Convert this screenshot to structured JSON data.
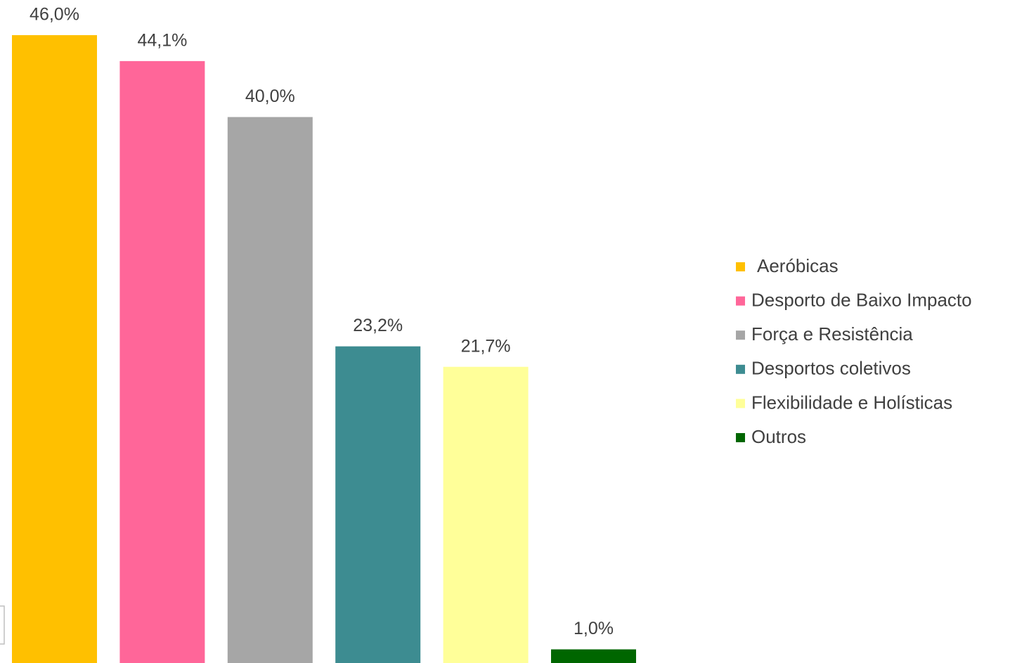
{
  "chart_data": {
    "type": "bar",
    "series": [
      {
        "name": "Aeróbicas",
        "color": "#FFC000",
        "values": [
          46.0
        ],
        "value_labels": [
          "46,0%"
        ]
      },
      {
        "name": "Desporto de Baixo Impacto",
        "color": "#FF6699",
        "values": [
          44.1
        ],
        "value_labels": [
          "44,1%"
        ]
      },
      {
        "name": "Força e Resistência",
        "color": "#A6A6A6",
        "values": [
          40.0
        ],
        "value_labels": [
          "40,0%"
        ]
      },
      {
        "name": "Desportos coletivos",
        "color": "#3D8C91",
        "values": [
          23.2
        ],
        "value_labels": [
          "23,2%"
        ]
      },
      {
        "name": "Flexibilidade e Holísticas",
        "color": "#FFFF99",
        "values": [
          21.7
        ],
        "value_labels": [
          "21,7%"
        ]
      },
      {
        "name": "Outros",
        "color": "#006600",
        "values": [
          1.0
        ],
        "value_labels": [
          "1,0%"
        ]
      }
    ],
    "legend": "right"
  }
}
